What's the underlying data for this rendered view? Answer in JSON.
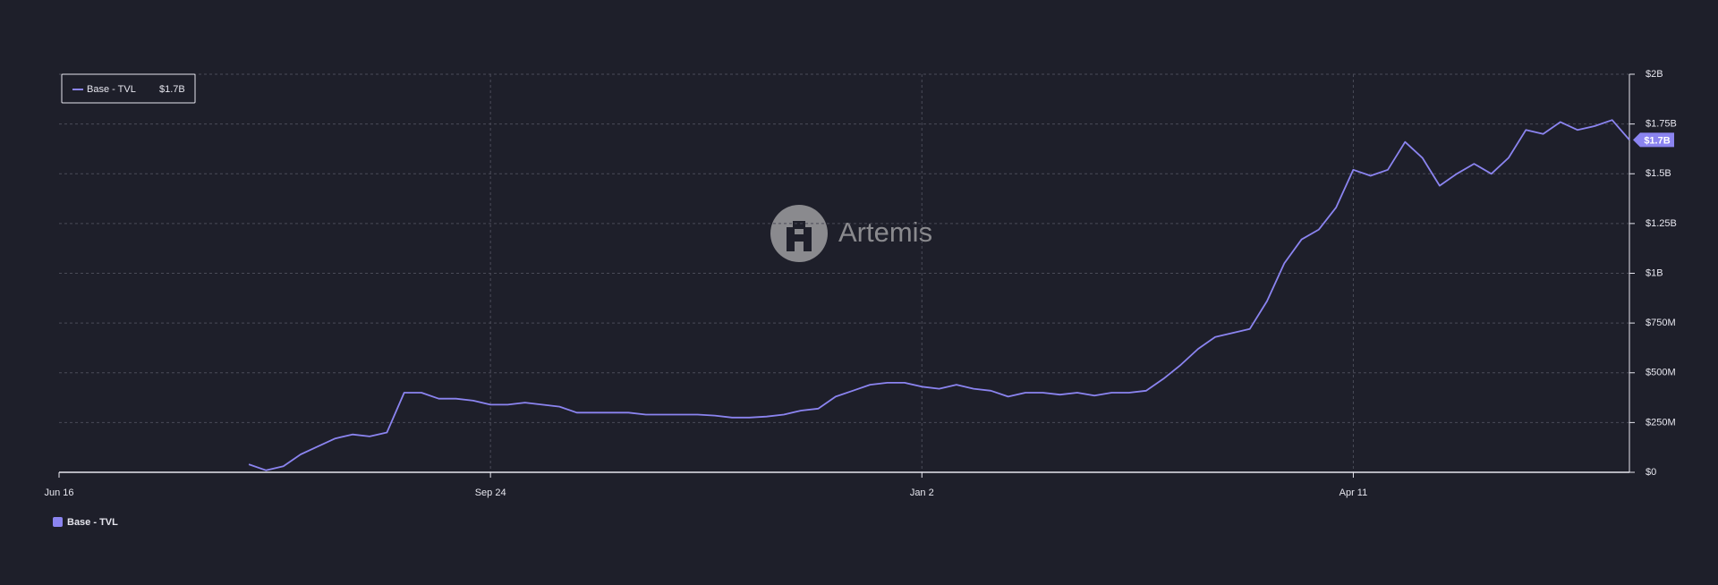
{
  "chart_data": {
    "type": "line",
    "watermark": "Artemis",
    "categories": [
      "Jun 16",
      null,
      null,
      null,
      null,
      null,
      null,
      null,
      null,
      null,
      null,
      null,
      null,
      null,
      null,
      null,
      null,
      null,
      null,
      null,
      null,
      null,
      null,
      null,
      null,
      "Sep 24",
      null,
      null,
      null,
      null,
      null,
      null,
      null,
      null,
      null,
      null,
      null,
      null,
      null,
      null,
      null,
      null,
      null,
      null,
      null,
      null,
      null,
      null,
      null,
      null,
      "Jan 2",
      null,
      null,
      null,
      null,
      null,
      null,
      null,
      null,
      null,
      null,
      null,
      null,
      null,
      null,
      null,
      null,
      null,
      null,
      null,
      null,
      null,
      null,
      null,
      null,
      "Apr 11",
      null,
      null,
      null,
      null,
      null,
      null,
      null,
      null,
      null,
      null,
      null,
      null,
      null,
      null,
      null,
      null
    ],
    "series": [
      {
        "name": "Base - TVL",
        "color": "#8b84f0",
        "current_value_label": "$1.7B",
        "values": [
          null,
          null,
          null,
          null,
          null,
          null,
          null,
          null,
          null,
          null,
          null,
          40000000.0,
          10000000.0,
          30000000.0,
          90000000.0,
          130000000.0,
          170000000.0,
          190000000.0,
          180000000.0,
          200000000.0,
          400000000.0,
          400000000.0,
          370000000.0,
          370000000.0,
          360000000.0,
          340000000.0,
          340000000.0,
          350000000.0,
          340000000.0,
          330000000.0,
          300000000.0,
          300000000.0,
          300000000.0,
          300000000.0,
          290000000.0,
          290000000.0,
          290000000.0,
          290000000.0,
          285000000.0,
          275000000.0,
          275000000.0,
          280000000.0,
          290000000.0,
          310000000.0,
          320000000.0,
          380000000.0,
          410000000.0,
          440000000.0,
          450000000.0,
          450000000.0,
          430000000.0,
          420000000.0,
          440000000.0,
          420000000.0,
          410000000.0,
          380000000.0,
          400000000.0,
          400000000.0,
          390000000.0,
          400000000.0,
          385000000.0,
          400000000.0,
          400000000.0,
          410000000.0,
          470000000.0,
          540000000.0,
          620000000.0,
          680000000.0,
          700000000.0,
          720000000.0,
          860000000.0,
          1050000000.0,
          1170000000.0,
          1220000000.0,
          1330000000.0,
          1520000000.0,
          1490000000.0,
          1520000000.0,
          1660000000.0,
          1580000000.0,
          1440000000.0,
          1500000000.0,
          1550000000.0,
          1500000000.0,
          1580000000.0,
          1720000000.0,
          1700000000.0,
          1760000000.0,
          1720000000.0,
          1740000000.0,
          1770000000.0,
          1670000000.0
        ]
      }
    ],
    "ylim": [
      0,
      2000000000
    ],
    "yticks": [
      {
        "value": 0,
        "label": "$0"
      },
      {
        "value": 250000000,
        "label": "$250M"
      },
      {
        "value": 500000000,
        "label": "$500M"
      },
      {
        "value": 750000000,
        "label": "$750M"
      },
      {
        "value": 1000000000,
        "label": "$1B"
      },
      {
        "value": 1250000000,
        "label": "$1.25B"
      },
      {
        "value": 1500000000,
        "label": "$1.5B"
      },
      {
        "value": 1750000000,
        "label": "$1.75B"
      },
      {
        "value": 2000000000,
        "label": "$2B"
      }
    ],
    "grid": true,
    "legend": "top-left"
  }
}
